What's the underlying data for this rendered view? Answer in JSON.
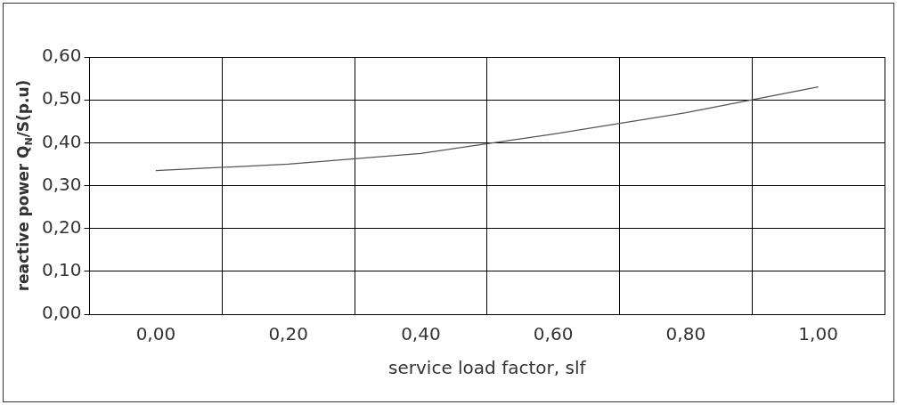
{
  "chart_data": {
    "type": "line",
    "xlabel": "service load factor, slf",
    "ylabel": "reactive power Q$_{N}$/S(p.u)",
    "categories": [
      "0,00",
      "0,20",
      "0,40",
      "0,60",
      "0,80",
      "1,00"
    ],
    "series": [
      {
        "color": "#555555",
        "values": [
          0.335,
          0.35,
          0.375,
          0.42,
          0.47,
          0.53
        ]
      }
    ],
    "ylim": [
      0,
      0.6
    ],
    "yticks": [
      {
        "value": 0,
        "label": "0,00"
      },
      {
        "value": 0.1,
        "label": "0,10"
      },
      {
        "value": 0.2,
        "label": "0,20"
      },
      {
        "value": 0.3,
        "label": "0,30"
      },
      {
        "value": 0.4,
        "label": "0,40"
      },
      {
        "value": 0.5,
        "label": "0,50"
      },
      {
        "value": 0.6,
        "label": "0,60"
      }
    ],
    "grid": true,
    "legend": false,
    "marker": "none",
    "line_style": "solid"
  }
}
